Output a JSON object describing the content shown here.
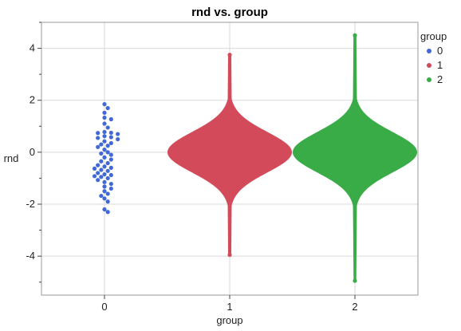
{
  "chart_data": {
    "type": "scatter",
    "subtype": "beeswarm",
    "title": "rnd vs. group",
    "xlabel": "group",
    "ylabel": "rnd",
    "categories": [
      "0",
      "1",
      "2"
    ],
    "ylim": [
      -5.5,
      5
    ],
    "yticks": [
      -4,
      -2,
      0,
      2,
      4
    ],
    "grid": true,
    "legend": {
      "title": "group",
      "placement": "right",
      "entries": [
        {
          "label": "0",
          "color": "#4169d6"
        },
        {
          "label": "1",
          "color": "#d34a5a"
        },
        {
          "label": "2",
          "color": "#3aac47"
        }
      ]
    },
    "series": [
      {
        "category": "0",
        "color": "#4169d6",
        "points": [
          1.85,
          1.7,
          1.52,
          1.33,
          1.27,
          1.1,
          0.95,
          0.78,
          0.75,
          0.74,
          0.7,
          0.62,
          0.58,
          0.55,
          0.5,
          0.42,
          0.35,
          0.3,
          0.25,
          0.2,
          0.1,
          0.0,
          -0.05,
          -0.1,
          -0.2,
          -0.28,
          -0.35,
          -0.42,
          -0.5,
          -0.55,
          -0.6,
          -0.63,
          -0.68,
          -0.72,
          -0.8,
          -0.85,
          -0.88,
          -0.92,
          -0.95,
          -1.0,
          -1.07,
          -1.15,
          -1.22,
          -1.32,
          -1.4,
          -1.5,
          -1.6,
          -1.68,
          -1.78,
          -1.9,
          -2.2,
          -2.3
        ]
      },
      {
        "category": "1",
        "color": "#d34a5a",
        "distribution": {
          "n_approx": 100000,
          "min": -3.95,
          "max": 3.75,
          "center": 0.0
        }
      },
      {
        "category": "2",
        "color": "#3aac47",
        "distribution": {
          "n_approx": 100000,
          "min": -4.95,
          "max": 4.5,
          "center": 0.0
        }
      }
    ]
  }
}
